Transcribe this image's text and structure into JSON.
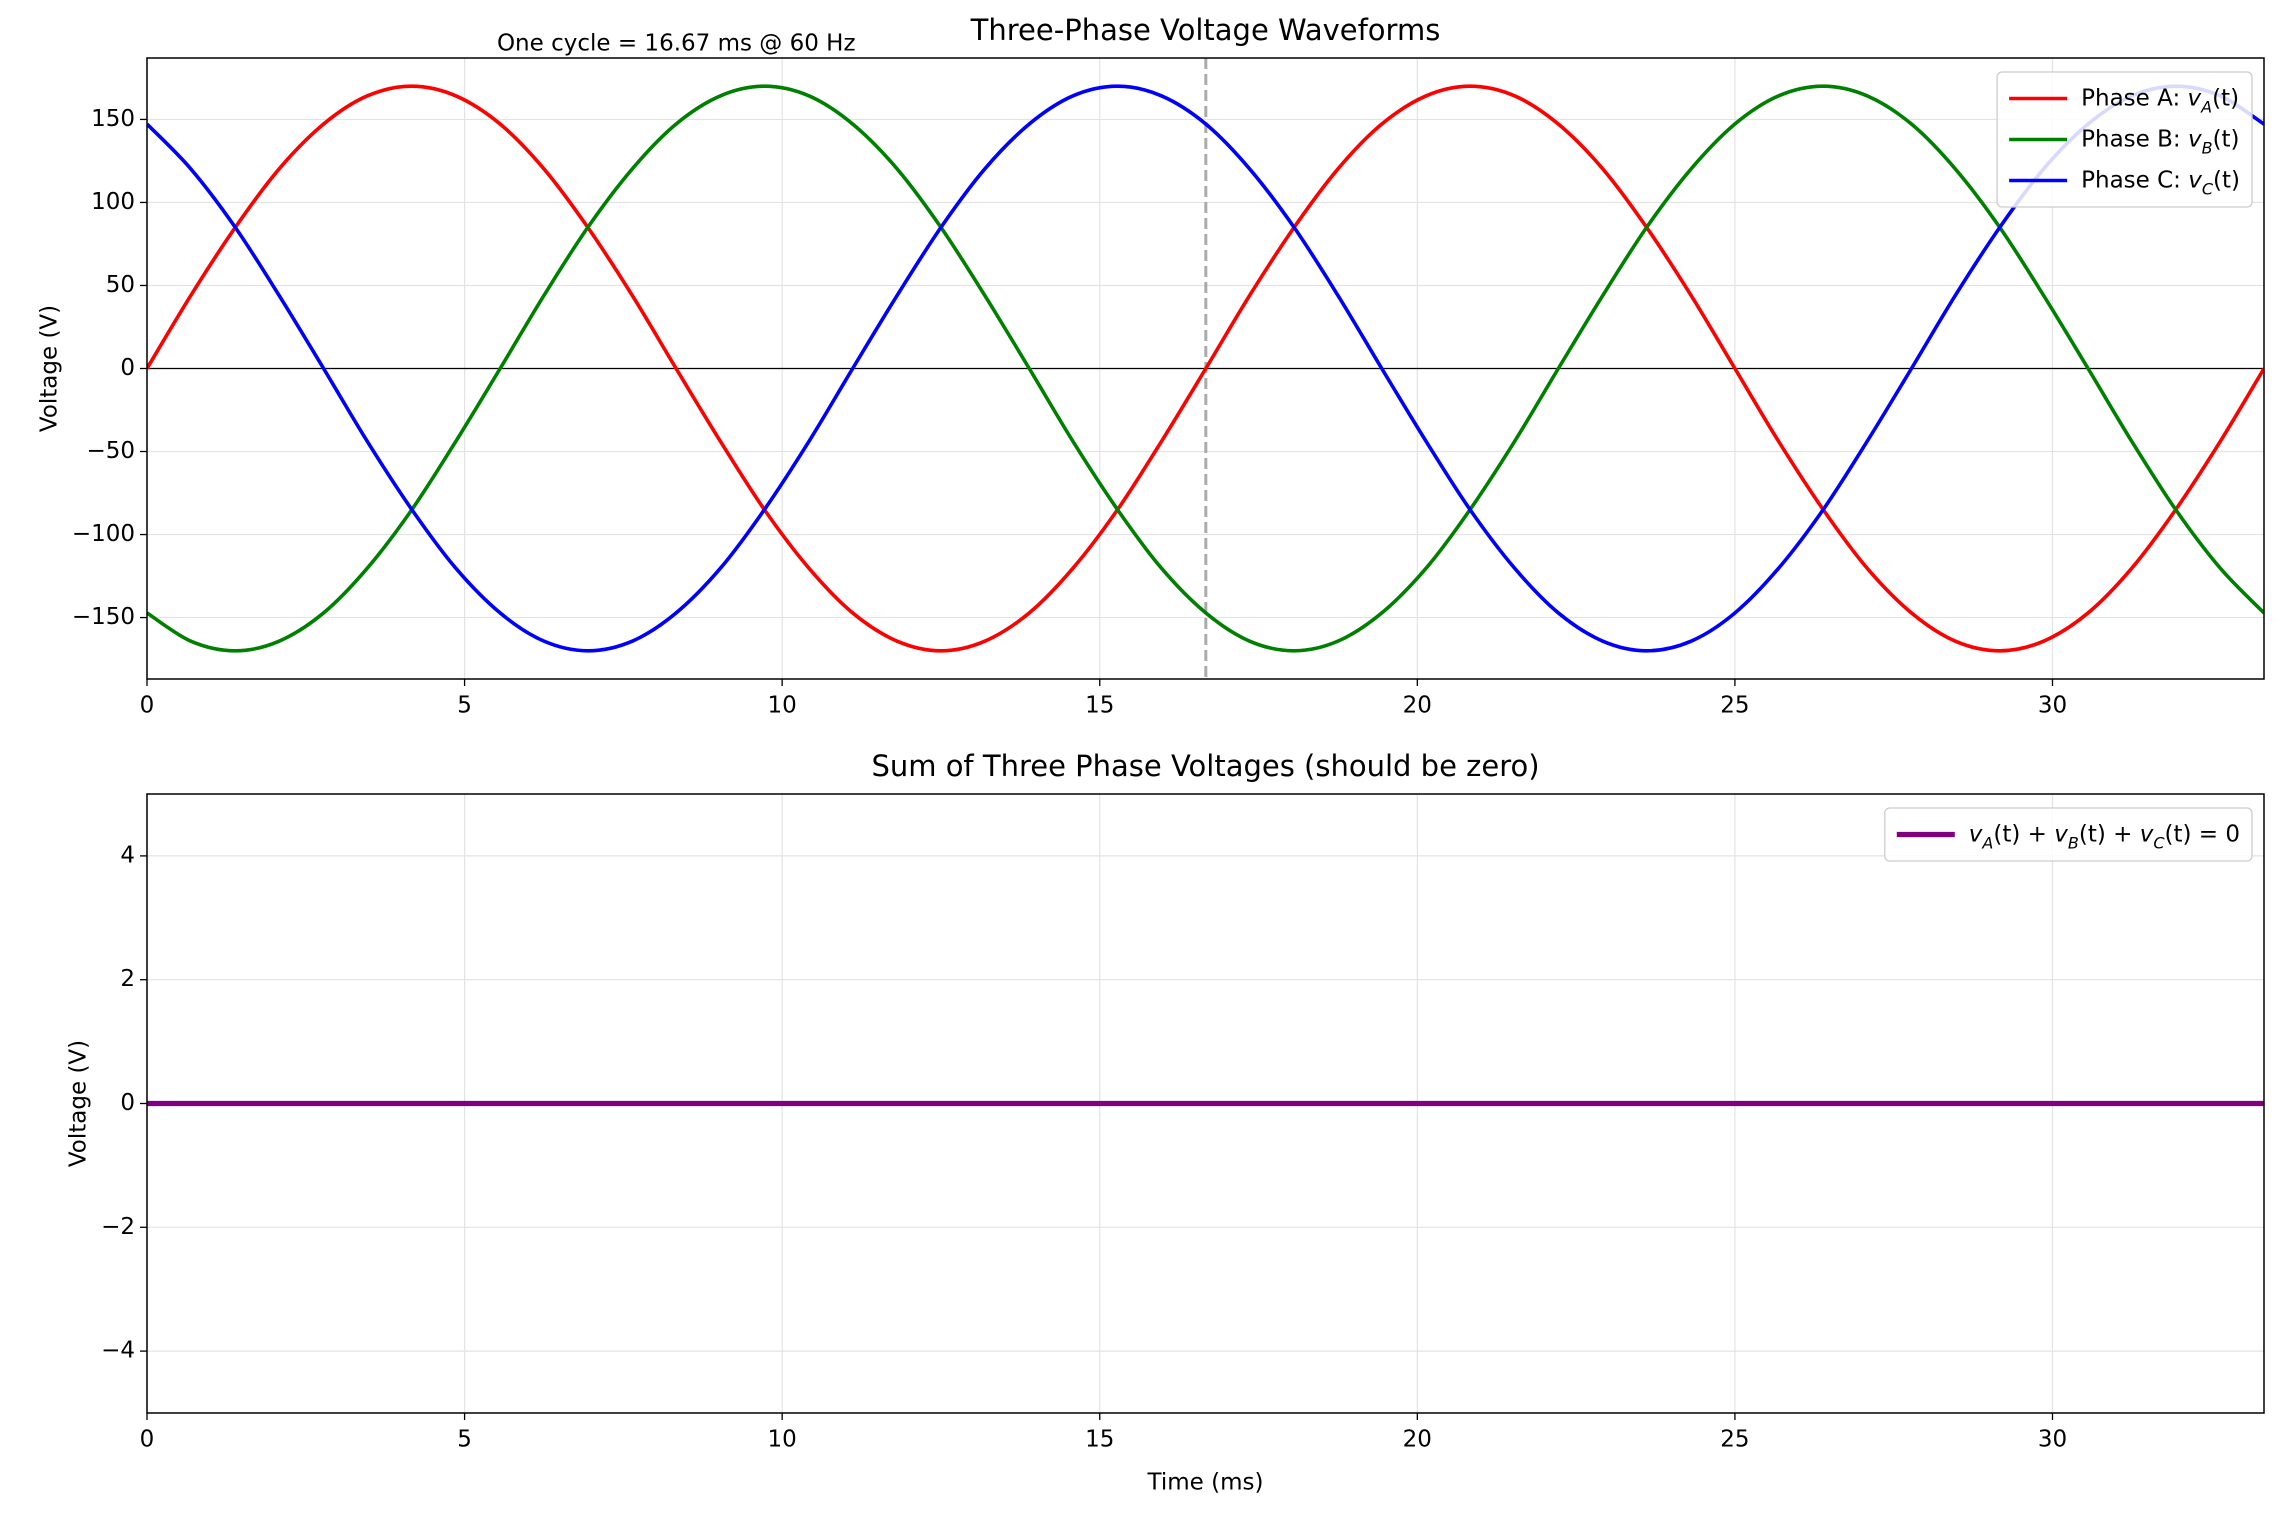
{
  "chart_data": [
    {
      "type": "line",
      "title": "Three-Phase Voltage Waveforms",
      "ylabel": "Voltage (V)",
      "annotations": [
        "One cycle = 16.67 ms @ 60 Hz"
      ],
      "vlines": [
        16.67
      ],
      "hlines": [
        0
      ],
      "x": [
        0,
        0.69,
        1.39,
        2.08,
        2.78,
        3.47,
        4.17,
        4.86,
        5.56,
        6.25,
        6.94,
        7.64,
        8.33,
        9.03,
        9.72,
        10.42,
        11.11,
        11.81,
        12.5,
        13.19,
        13.89,
        14.58,
        15.28,
        15.97,
        16.67,
        17.36,
        18.06,
        18.75,
        19.44,
        20.14,
        20.83,
        21.53,
        22.22,
        22.92,
        23.61,
        24.31,
        25,
        25.69,
        26.39,
        27.08,
        27.78,
        28.47,
        29.17,
        29.86,
        30.56,
        31.25,
        31.94,
        32.64,
        33.33
      ],
      "series": [
        {
          "name": "Phase A: v_A(t)",
          "color": "#ff0000",
          "values": [
            0,
            44,
            85,
            120.21,
            147.22,
            164.21,
            170,
            164.21,
            147.22,
            120.21,
            85,
            44,
            0,
            -44,
            -85,
            -120.21,
            -147.22,
            -164.21,
            -170,
            -164.21,
            -147.22,
            -120.21,
            -85,
            -44,
            0,
            44,
            85,
            120.21,
            147.22,
            164.21,
            170,
            164.21,
            147.22,
            120.21,
            85,
            44,
            0,
            -44,
            -85,
            -120.21,
            -147.22,
            -164.21,
            -170,
            -164.21,
            -147.22,
            -120.21,
            -85,
            -44,
            0
          ]
        },
        {
          "name": "Phase B: v_B(t)",
          "color": "#008000",
          "values": [
            -147.22,
            -164.21,
            -170,
            -164.21,
            -147.22,
            -120.21,
            -85,
            -44,
            0,
            44,
            85,
            120.21,
            147.22,
            164.21,
            170,
            164.21,
            147.22,
            120.21,
            85,
            44,
            0,
            -44,
            -85,
            -120.21,
            -147.22,
            -164.21,
            -170,
            -164.21,
            -147.22,
            -120.21,
            -85,
            -44,
            0,
            44,
            85,
            120.21,
            147.22,
            164.21,
            170,
            164.21,
            147.22,
            120.21,
            85,
            44,
            0,
            -44,
            -85,
            -120.21,
            -147.22
          ]
        },
        {
          "name": "Phase C: v_C(t)",
          "color": "#0000ff",
          "values": [
            147.22,
            120.21,
            85,
            44,
            0,
            -44,
            -85,
            -120.21,
            -147.22,
            -164.21,
            -170,
            -164.21,
            -147.22,
            -120.21,
            -85,
            -44,
            0,
            44,
            85,
            120.21,
            147.22,
            164.21,
            170,
            164.21,
            147.22,
            120.21,
            85,
            44,
            0,
            -44,
            -85,
            -120.21,
            -147.22,
            -164.21,
            -170,
            -164.21,
            -147.22,
            -120.21,
            -85,
            -44,
            0,
            44,
            85,
            120.21,
            147.22,
            164.21,
            170,
            164.21,
            147.22
          ]
        }
      ],
      "xlim": [
        0,
        33.33
      ],
      "xticks": [
        0,
        5,
        10,
        15,
        20,
        25,
        30
      ],
      "ylim": [
        -187,
        187
      ],
      "yticks": [
        {
          "value": -150,
          "label": "−150"
        },
        {
          "value": -100,
          "label": "−100"
        },
        {
          "value": -50,
          "label": "−50"
        },
        0,
        50,
        100,
        150
      ],
      "grid": true,
      "legend": "upper right"
    },
    {
      "type": "line",
      "title": "Sum of Three Phase Voltages (should be zero)",
      "xlabel": "Time (ms)",
      "ylabel": "Voltage (V)",
      "x": [
        0,
        33.33
      ],
      "series": [
        {
          "name": "v_A(t) + v_B(t) + v_C(t) = 0",
          "color": "#800080",
          "values": [
            0,
            0
          ]
        }
      ],
      "xlim": [
        0,
        33.33
      ],
      "xticks": [
        0,
        5,
        10,
        15,
        20,
        25,
        30
      ],
      "ylim": [
        -5,
        5
      ],
      "yticks": [
        {
          "value": -4,
          "label": "−4"
        },
        {
          "value": -2,
          "label": "−2"
        },
        0,
        2,
        4
      ],
      "grid": true,
      "legend": "upper right"
    }
  ]
}
